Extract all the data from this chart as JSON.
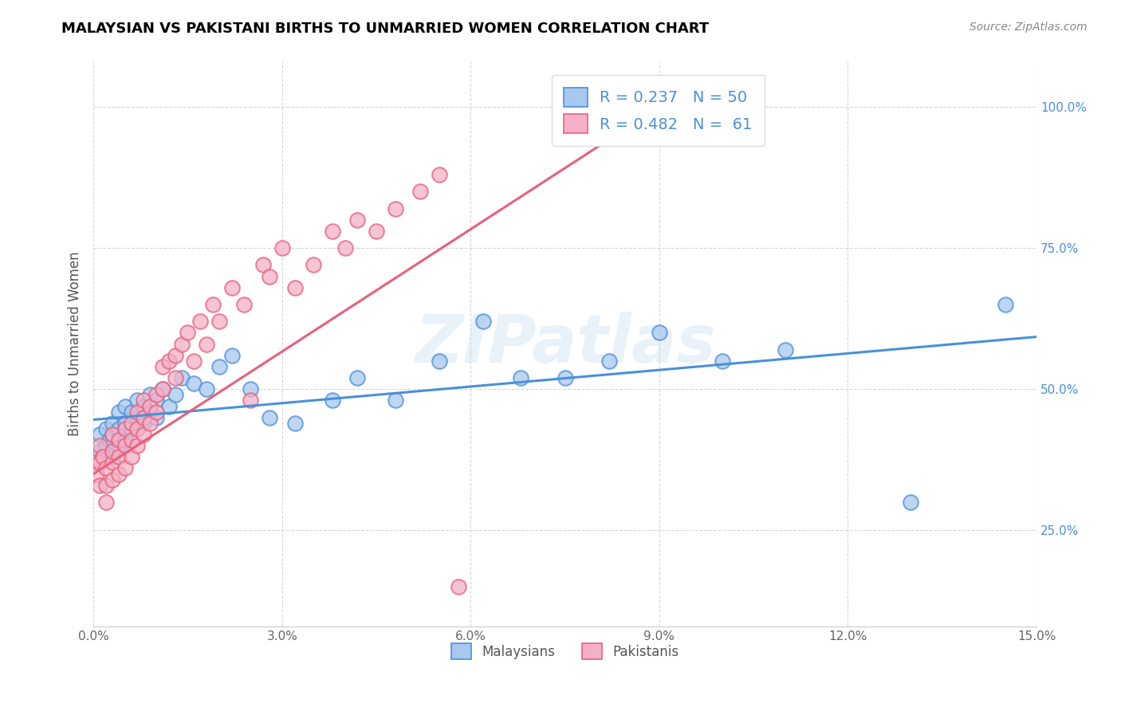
{
  "title": "MALAYSIAN VS PAKISTANI BIRTHS TO UNMARRIED WOMEN CORRELATION CHART",
  "source": "Source: ZipAtlas.com",
  "ylabel": "Births to Unmarried Women",
  "watermark": "ZIPatlas",
  "legend_r_malaysian": "R = 0.237",
  "legend_n_malaysian": "N = 50",
  "legend_r_pakistani": "R = 0.482",
  "legend_n_pakistani": "N =  61",
  "color_malaysian": "#a8c8f0",
  "color_pakistani": "#f4b0c8",
  "color_line_malaysian": "#4a90d9",
  "color_line_pakistani": "#e8607a",
  "xlim": [
    0.0,
    0.15
  ],
  "ylim": [
    0.08,
    1.08
  ],
  "malaysian_x": [
    0.0005,
    0.001,
    0.001,
    0.0015,
    0.002,
    0.002,
    0.0025,
    0.003,
    0.003,
    0.003,
    0.004,
    0.004,
    0.004,
    0.005,
    0.005,
    0.005,
    0.006,
    0.006,
    0.007,
    0.007,
    0.008,
    0.008,
    0.009,
    0.009,
    0.01,
    0.01,
    0.011,
    0.012,
    0.013,
    0.014,
    0.016,
    0.018,
    0.02,
    0.022,
    0.025,
    0.028,
    0.032,
    0.038,
    0.042,
    0.048,
    0.055,
    0.062,
    0.068,
    0.075,
    0.082,
    0.09,
    0.1,
    0.11,
    0.13,
    0.145
  ],
  "malaysian_y": [
    0.37,
    0.39,
    0.42,
    0.38,
    0.4,
    0.43,
    0.41,
    0.38,
    0.42,
    0.44,
    0.4,
    0.43,
    0.46,
    0.41,
    0.44,
    0.47,
    0.43,
    0.46,
    0.45,
    0.48,
    0.44,
    0.47,
    0.46,
    0.49,
    0.45,
    0.48,
    0.5,
    0.47,
    0.49,
    0.52,
    0.51,
    0.5,
    0.54,
    0.56,
    0.5,
    0.45,
    0.44,
    0.48,
    0.52,
    0.48,
    0.55,
    0.62,
    0.52,
    0.52,
    0.55,
    0.6,
    0.55,
    0.57,
    0.3,
    0.65
  ],
  "pakistani_x": [
    0.0003,
    0.0005,
    0.001,
    0.001,
    0.001,
    0.0015,
    0.002,
    0.002,
    0.002,
    0.003,
    0.003,
    0.003,
    0.003,
    0.004,
    0.004,
    0.004,
    0.005,
    0.005,
    0.005,
    0.006,
    0.006,
    0.006,
    0.007,
    0.007,
    0.007,
    0.008,
    0.008,
    0.008,
    0.009,
    0.009,
    0.01,
    0.01,
    0.011,
    0.011,
    0.012,
    0.013,
    0.013,
    0.014,
    0.015,
    0.016,
    0.017,
    0.018,
    0.019,
    0.02,
    0.022,
    0.024,
    0.025,
    0.027,
    0.028,
    0.03,
    0.032,
    0.035,
    0.038,
    0.04,
    0.042,
    0.045,
    0.048,
    0.052,
    0.055,
    0.058,
    0.085
  ],
  "pakistani_y": [
    0.37,
    0.35,
    0.33,
    0.37,
    0.4,
    0.38,
    0.36,
    0.33,
    0.3,
    0.34,
    0.37,
    0.39,
    0.42,
    0.35,
    0.38,
    0.41,
    0.36,
    0.4,
    0.43,
    0.38,
    0.41,
    0.44,
    0.4,
    0.43,
    0.46,
    0.42,
    0.45,
    0.48,
    0.44,
    0.47,
    0.46,
    0.49,
    0.5,
    0.54,
    0.55,
    0.52,
    0.56,
    0.58,
    0.6,
    0.55,
    0.62,
    0.58,
    0.65,
    0.62,
    0.68,
    0.65,
    0.48,
    0.72,
    0.7,
    0.75,
    0.68,
    0.72,
    0.78,
    0.75,
    0.8,
    0.78,
    0.82,
    0.85,
    0.88,
    0.15,
    1.0
  ]
}
